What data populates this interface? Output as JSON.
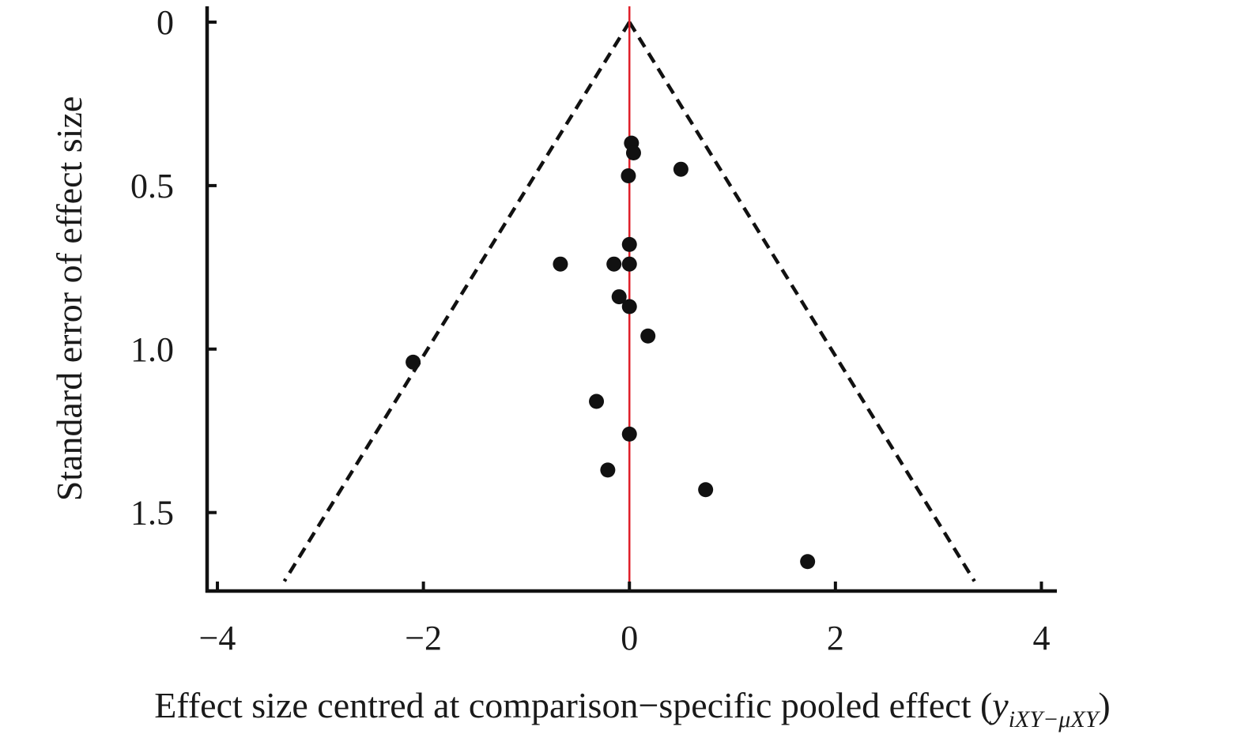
{
  "chart_data": {
    "type": "scatter",
    "title": "",
    "xlabel_main": "Effect size centred at comparison−specific pooled effect (",
    "xlabel_var": "y",
    "xlabel_sub": "iXY−μXY",
    "xlabel_close": ")",
    "ylabel": "Standard error of effect size",
    "xlim": [
      -4.1,
      4.15
    ],
    "ylim": [
      0,
      1.74
    ],
    "y_inverted": true,
    "grid": false,
    "x_ticks": [
      {
        "value": -4,
        "label": "−4"
      },
      {
        "value": -2,
        "label": "−2"
      },
      {
        "value": 0,
        "label": "0"
      },
      {
        "value": 2,
        "label": "2"
      },
      {
        "value": 4,
        "label": "4"
      }
    ],
    "y_ticks": [
      {
        "value": 0,
        "label": "0"
      },
      {
        "value": 0.5,
        "label": "0.5"
      },
      {
        "value": 1.0,
        "label": "1.0"
      },
      {
        "value": 1.5,
        "label": "1.5"
      }
    ],
    "reference_line": {
      "x": 0,
      "color": "#e0202a"
    },
    "funnel": {
      "apex": [
        0,
        0
      ],
      "left_end": [
        -3.35,
        1.71
      ],
      "right_end": [
        3.35,
        1.71
      ],
      "style": "dashed"
    },
    "points": [
      {
        "x": 0.02,
        "y": 0.37
      },
      {
        "x": 0.04,
        "y": 0.4
      },
      {
        "x": 0.5,
        "y": 0.45
      },
      {
        "x": -0.01,
        "y": 0.47
      },
      {
        "x": 0.0,
        "y": 0.68
      },
      {
        "x": -0.67,
        "y": 0.74
      },
      {
        "x": -0.15,
        "y": 0.74
      },
      {
        "x": 0.0,
        "y": 0.74
      },
      {
        "x": -0.1,
        "y": 0.84
      },
      {
        "x": 0.0,
        "y": 0.87
      },
      {
        "x": 0.18,
        "y": 0.96
      },
      {
        "x": -2.1,
        "y": 1.04
      },
      {
        "x": -0.32,
        "y": 1.16
      },
      {
        "x": 0.0,
        "y": 1.26
      },
      {
        "x": -0.21,
        "y": 1.37
      },
      {
        "x": 0.74,
        "y": 1.43
      },
      {
        "x": 1.73,
        "y": 1.65
      }
    ],
    "colors": {
      "points": "#111111",
      "axes": "#111111",
      "funnel": "#111111"
    }
  }
}
